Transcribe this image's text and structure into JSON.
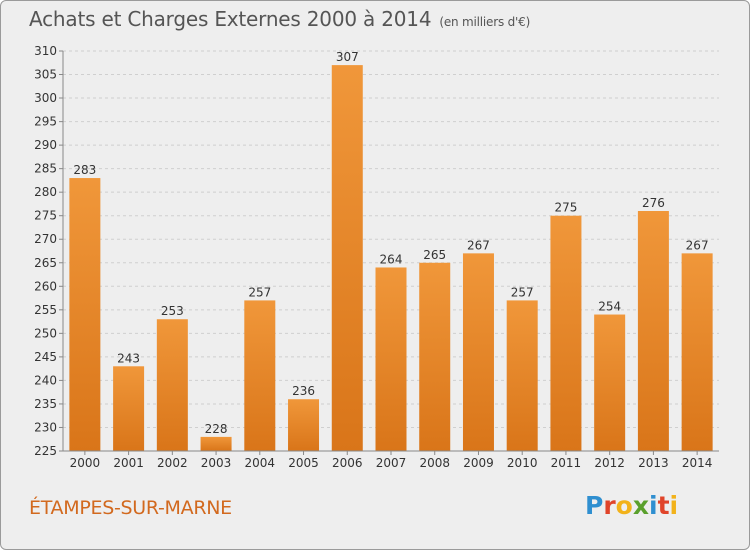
{
  "chart_data": {
    "type": "bar",
    "title": "Achats et Charges Externes 2000 à 2014",
    "subtitle": "(en milliers d'€)",
    "categories": [
      "2000",
      "2001",
      "2002",
      "2003",
      "2004",
      "2005",
      "2006",
      "2007",
      "2008",
      "2009",
      "2010",
      "2011",
      "2012",
      "2013",
      "2014"
    ],
    "values": [
      283,
      243,
      253,
      228,
      257,
      236,
      307,
      264,
      265,
      267,
      257,
      275,
      254,
      276,
      267
    ],
    "ylim": [
      225,
      310
    ],
    "ytick_step": 5,
    "xlabel": "",
    "ylabel": "",
    "grid": true,
    "bar_color": "#f0973a",
    "bar_color_dark": "#d97519"
  },
  "footer": {
    "city": "ÉTAMPES-SUR-MARNE",
    "logo_letters": [
      "P",
      "r",
      "o",
      "x",
      "i",
      "t",
      "i"
    ],
    "logo_colors": [
      "#2f8fd0",
      "#e0442a",
      "#f2b21a",
      "#5aa02c",
      "#2f8fd0",
      "#e0442a",
      "#f2b21a"
    ]
  }
}
